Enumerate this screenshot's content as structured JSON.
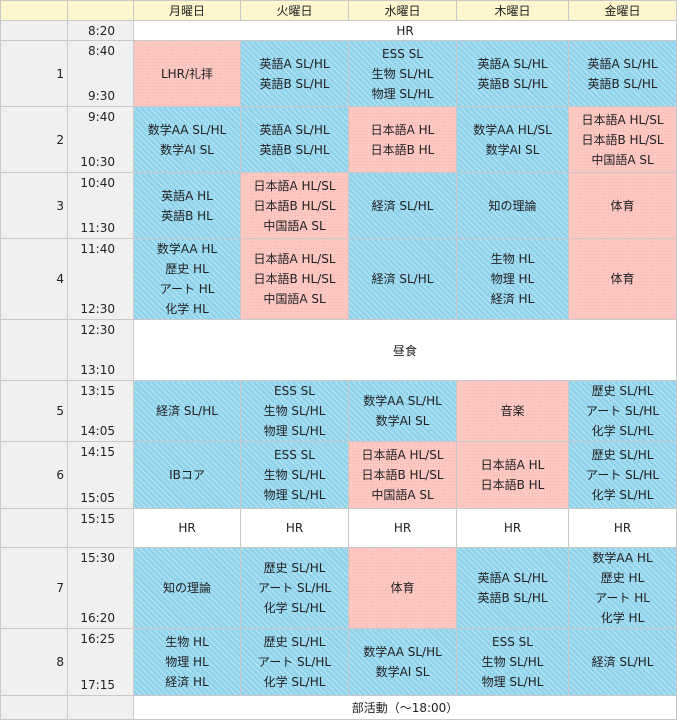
{
  "header": {
    "days": [
      "月曜日",
      "火曜日",
      "水曜日",
      "木曜日",
      "金曜日"
    ]
  },
  "opening": {
    "time": "8:20",
    "label": "HR"
  },
  "lunch": {
    "start": "12:30",
    "end": "13:10",
    "label": "昼食"
  },
  "afternoon_hr": {
    "time": "15:15",
    "label": "HR"
  },
  "club": {
    "label": "部活動（～18:00）"
  },
  "periods": [
    {
      "num": "1",
      "start": "8:40",
      "end": "9:30",
      "cells": [
        {
          "color": "red",
          "lines": [
            "LHR/礼拝"
          ]
        },
        {
          "color": "blue",
          "lines": [
            "英語A SL/HL",
            "英語B SL/HL"
          ]
        },
        {
          "color": "blue",
          "lines": [
            "ESS SL",
            "生物 SL/HL",
            "物理 SL/HL"
          ]
        },
        {
          "color": "blue",
          "lines": [
            "英語A SL/HL",
            "英語B SL/HL"
          ]
        },
        {
          "color": "blue",
          "lines": [
            "英語A SL/HL",
            "英語B SL/HL"
          ]
        }
      ]
    },
    {
      "num": "2",
      "start": "9:40",
      "end": "10:30",
      "cells": [
        {
          "color": "blue",
          "lines": [
            "数学AA SL/HL",
            "数学AI SL"
          ]
        },
        {
          "color": "blue",
          "lines": [
            "英語A SL/HL",
            "英語B SL/HL"
          ]
        },
        {
          "color": "red",
          "lines": [
            "日本語A HL",
            "日本語B HL"
          ]
        },
        {
          "color": "blue",
          "lines": [
            "数学AA HL/SL",
            "数学AI SL"
          ]
        },
        {
          "color": "red",
          "lines": [
            "日本語A HL/SL",
            "日本語B HL/SL",
            "中国語A SL"
          ]
        }
      ]
    },
    {
      "num": "3",
      "start": "10:40",
      "end": "11:30",
      "cells": [
        {
          "color": "blue",
          "lines": [
            "英語A HL",
            "英語B HL"
          ]
        },
        {
          "color": "red",
          "lines": [
            "日本語A HL/SL",
            "日本語B HL/SL",
            "中国語A SL"
          ]
        },
        {
          "color": "blue",
          "lines": [
            "経済 SL/HL"
          ]
        },
        {
          "color": "blue",
          "lines": [
            "知の理論"
          ]
        },
        {
          "color": "red",
          "lines": [
            "体育"
          ]
        }
      ]
    },
    {
      "num": "4",
      "start": "11:40",
      "end": "12:30",
      "cells": [
        {
          "color": "blue",
          "lines": [
            "数学AA HL",
            "歴史 HL",
            "アート HL",
            "化学 HL"
          ]
        },
        {
          "color": "red",
          "lines": [
            "日本語A HL/SL",
            "日本語B HL/SL",
            "中国語A SL"
          ]
        },
        {
          "color": "blue",
          "lines": [
            "経済 SL/HL"
          ]
        },
        {
          "color": "blue",
          "lines": [
            "生物 HL",
            "物理 HL",
            "経済 HL"
          ]
        },
        {
          "color": "red",
          "lines": [
            "体育"
          ]
        }
      ]
    },
    {
      "num": "5",
      "start": "13:15",
      "end": "14:05",
      "cells": [
        {
          "color": "blue",
          "lines": [
            "経済 SL/HL"
          ]
        },
        {
          "color": "blue",
          "lines": [
            "ESS SL",
            "生物 SL/HL",
            "物理 SL/HL"
          ]
        },
        {
          "color": "blue",
          "lines": [
            "数学AA SL/HL",
            "数学AI SL"
          ]
        },
        {
          "color": "red",
          "lines": [
            "音楽"
          ]
        },
        {
          "color": "blue",
          "lines": [
            "歴史 SL/HL",
            "アート SL/HL",
            "化学 SL/HL"
          ]
        }
      ]
    },
    {
      "num": "6",
      "start": "14:15",
      "end": "15:05",
      "cells": [
        {
          "color": "blue",
          "lines": [
            "IBコア"
          ]
        },
        {
          "color": "blue",
          "lines": [
            "ESS SL",
            "生物 SL/HL",
            "物理 SL/HL"
          ]
        },
        {
          "color": "red",
          "lines": [
            "日本語A HL/SL",
            "日本語B HL/SL",
            "中国語A SL"
          ]
        },
        {
          "color": "red",
          "lines": [
            "日本語A HL",
            "日本語B HL"
          ]
        },
        {
          "color": "blue",
          "lines": [
            "歴史 SL/HL",
            "アート SL/HL",
            "化学 SL/HL"
          ]
        }
      ]
    },
    {
      "num": "7",
      "start": "15:30",
      "end": "16:20",
      "cells": [
        {
          "color": "blue",
          "lines": [
            "知の理論"
          ]
        },
        {
          "color": "blue",
          "lines": [
            "歴史 SL/HL",
            "アート SL/HL",
            "化学 SL/HL"
          ]
        },
        {
          "color": "red",
          "lines": [
            "体育"
          ]
        },
        {
          "color": "blue",
          "lines": [
            "英語A SL/HL",
            "英語B SL/HL"
          ]
        },
        {
          "color": "blue",
          "lines": [
            "数学AA HL",
            "歴史 HL",
            "アート HL",
            "化学 HL"
          ]
        }
      ]
    },
    {
      "num": "8",
      "start": "16:25",
      "end": "17:15",
      "cells": [
        {
          "color": "blue",
          "lines": [
            "生物 HL",
            "物理 HL",
            "経済 HL"
          ]
        },
        {
          "color": "blue",
          "lines": [
            "歴史 SL/HL",
            "アート SL/HL",
            "化学 SL/HL"
          ]
        },
        {
          "color": "blue",
          "lines": [
            "数学AA SL/HL",
            "数学AI SL"
          ]
        },
        {
          "color": "blue",
          "lines": [
            "ESS SL",
            "生物 SL/HL",
            "物理 SL/HL"
          ]
        },
        {
          "color": "blue",
          "lines": [
            "経済 SL/HL"
          ]
        }
      ]
    }
  ]
}
